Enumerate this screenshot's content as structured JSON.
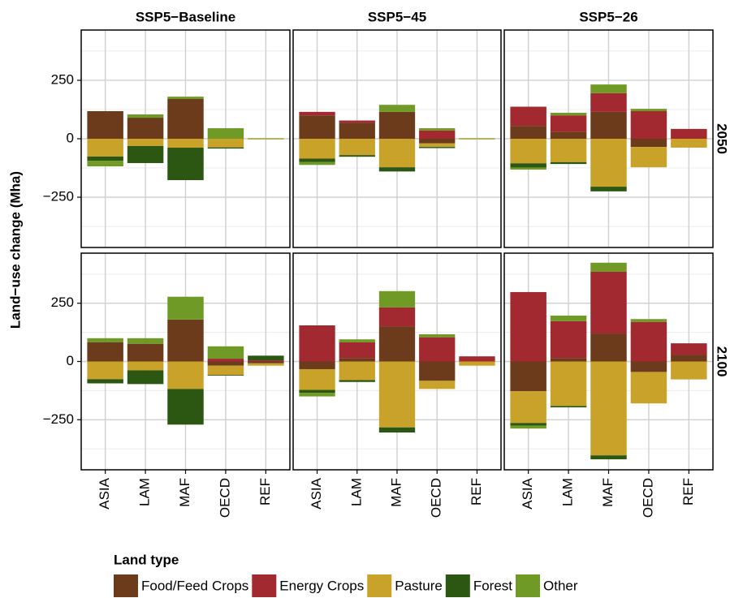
{
  "chart_data": {
    "type": "bar",
    "ylabel": "Land−use change (Mha)",
    "facet_columns": [
      "SSP5−Baseline",
      "SSP5−45",
      "SSP5−26"
    ],
    "facet_rows": [
      "2050",
      "2100"
    ],
    "categories": [
      "ASIA",
      "LAM",
      "MAF",
      "OECD",
      "REF"
    ],
    "legend_title": "Land type",
    "series": [
      {
        "name": "Food/Feed Crops",
        "color": "#6b3b1c"
      },
      {
        "name": "Energy Crops",
        "color": "#a2292f"
      },
      {
        "name": "Pasture",
        "color": "#c9a22a"
      },
      {
        "name": "Forest",
        "color": "#2c5712"
      },
      {
        "name": "Other",
        "color": "#6e9a25"
      }
    ],
    "panels": [
      [
        [
          [
            118,
            90,
            170,
            0,
            0
          ],
          [
            0,
            0,
            0,
            0,
            0
          ],
          [
            -76,
            -31,
            -38,
            -37,
            -3
          ],
          [
            -18,
            -73,
            -139,
            -5,
            0
          ],
          [
            -24,
            14,
            10,
            45,
            2
          ]
        ],
        [
          [
            100,
            68,
            115,
            -20,
            0
          ],
          [
            15,
            10,
            0,
            35,
            0
          ],
          [
            -85,
            -70,
            -122,
            -15,
            -3
          ],
          [
            -15,
            -7,
            -18,
            -5,
            0
          ],
          [
            -12,
            0,
            30,
            10,
            2
          ]
        ],
        [
          [
            55,
            30,
            115,
            -35,
            0
          ],
          [
            82,
            70,
            80,
            118,
            42
          ],
          [
            -105,
            -100,
            -205,
            -87,
            -38
          ],
          [
            -18,
            -8,
            -20,
            0,
            0
          ],
          [
            -9,
            11,
            37,
            10,
            0
          ]
        ]
      ],
      [
        [
          [
            83,
            76,
            180,
            -18,
            -8
          ],
          [
            0,
            0,
            0,
            12,
            5
          ],
          [
            -76,
            -38,
            -118,
            -40,
            -10
          ],
          [
            -18,
            -59,
            -153,
            -3,
            20
          ],
          [
            17,
            24,
            98,
            53,
            0
          ]
        ],
        [
          [
            -33,
            15,
            150,
            -83,
            0
          ],
          [
            155,
            67,
            82,
            104,
            22
          ],
          [
            -89,
            -80,
            -283,
            -35,
            -18
          ],
          [
            -13,
            -8,
            -22,
            0,
            0
          ],
          [
            -15,
            13,
            70,
            13,
            0
          ]
        ],
        [
          [
            -128,
            15,
            120,
            -45,
            28
          ],
          [
            298,
            158,
            265,
            170,
            50
          ],
          [
            -136,
            -191,
            -403,
            -135,
            -77
          ],
          [
            -11,
            -6,
            -17,
            0,
            0
          ],
          [
            -13,
            24,
            39,
            12,
            0
          ]
        ]
      ]
    ],
    "ylim": [
      -465,
      465
    ],
    "yticks": [
      {
        "value": -250,
        "label": "−250"
      },
      0,
      250
    ],
    "yminorticks": [
      -375,
      -125,
      125,
      375
    ],
    "grid": true
  }
}
